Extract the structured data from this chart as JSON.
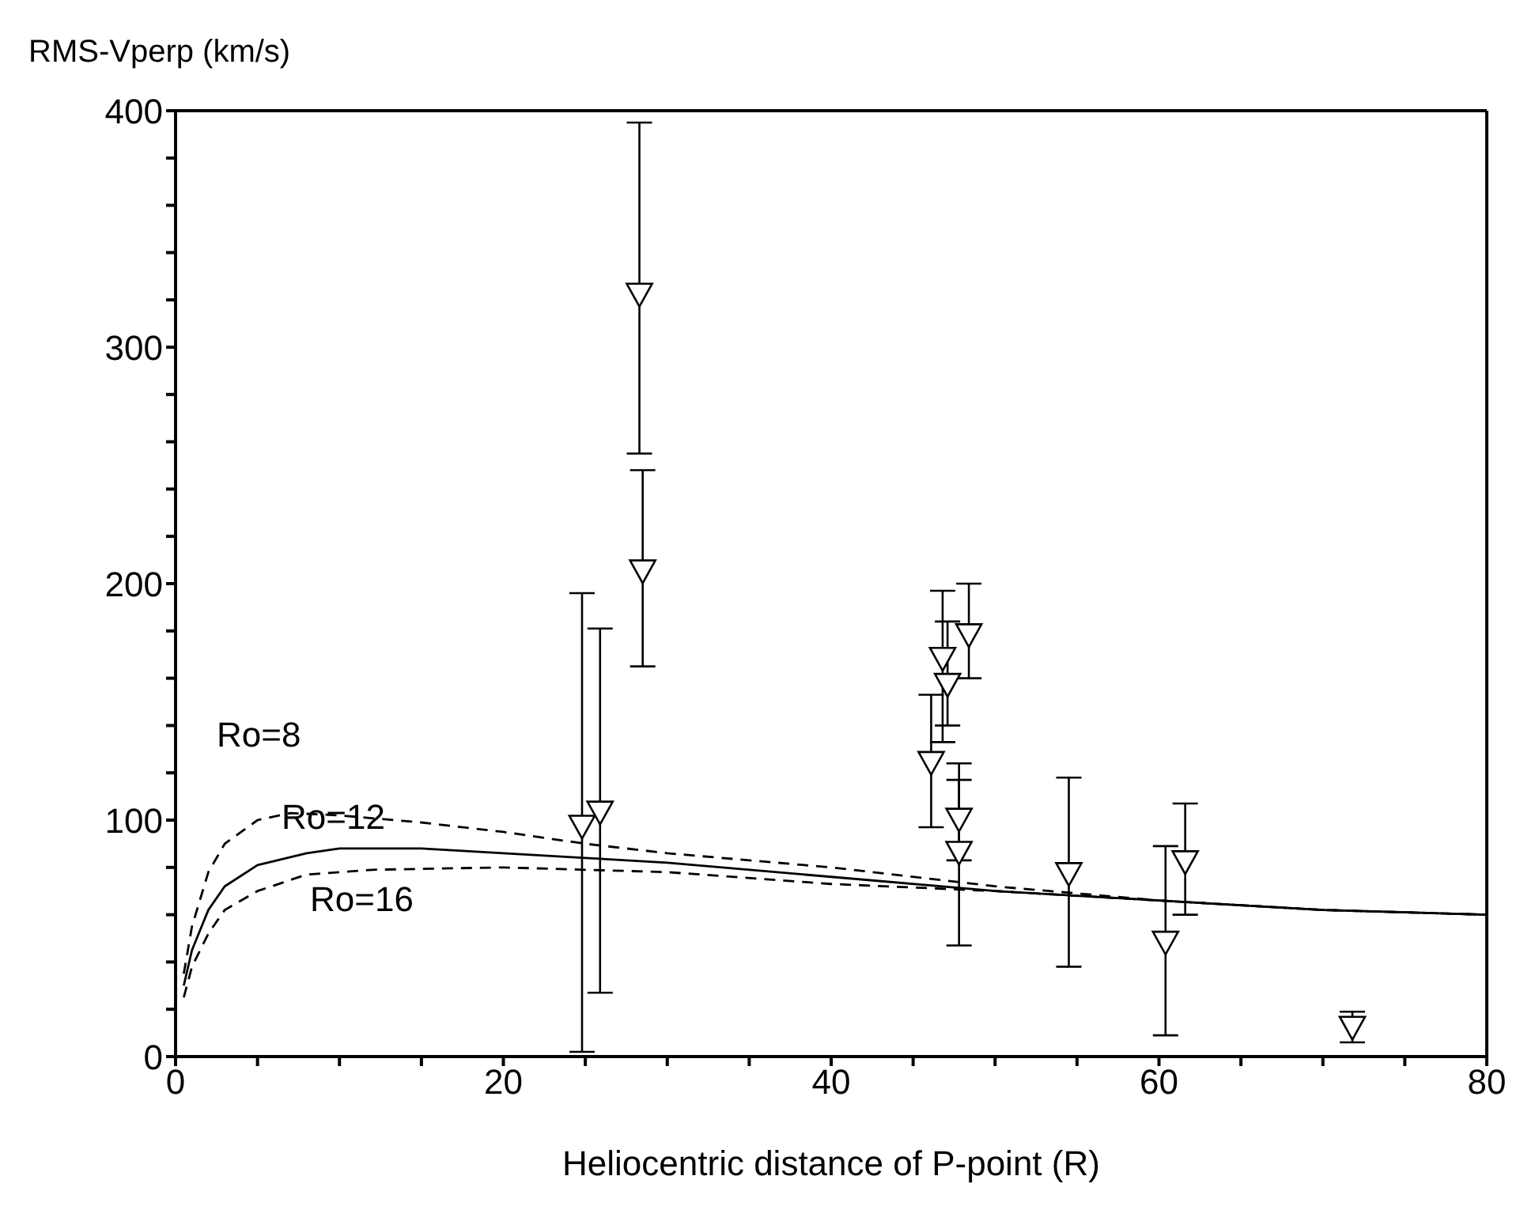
{
  "chart_data": {
    "type": "line",
    "xlabel": "Heliocentric distance of P-point (R)",
    "ylabel": "RMS-Vperp (km/s)",
    "xlim": [
      0,
      80
    ],
    "xticks": [
      0,
      {
        "value": 5,
        "label": null
      },
      {
        "value": 10,
        "label": null
      },
      {
        "value": 15,
        "label": null
      },
      20,
      {
        "value": 25,
        "label": null
      },
      {
        "value": 30,
        "label": null
      },
      {
        "value": 35,
        "label": null
      },
      40,
      {
        "value": 45,
        "label": null
      },
      {
        "value": 50,
        "label": null
      },
      {
        "value": 55,
        "label": null
      },
      60,
      {
        "value": 65,
        "label": null
      },
      {
        "value": 70,
        "label": null
      },
      {
        "value": 75,
        "label": null
      },
      80
    ],
    "ylim": [
      0,
      400
    ],
    "yticks": [
      0,
      {
        "value": 20,
        "label": null
      },
      {
        "value": 40,
        "label": null
      },
      {
        "value": 60,
        "label": null
      },
      {
        "value": 80,
        "label": null
      },
      100,
      {
        "value": 120,
        "label": null
      },
      {
        "value": 140,
        "label": null
      },
      {
        "value": 160,
        "label": null
      },
      {
        "value": 180,
        "label": null
      },
      200,
      {
        "value": 220,
        "label": null
      },
      {
        "value": 240,
        "label": null
      },
      {
        "value": 260,
        "label": null
      },
      {
        "value": 280,
        "label": null
      },
      300,
      {
        "value": 320,
        "label": null
      },
      {
        "value": 340,
        "label": null
      },
      {
        "value": 360,
        "label": null
      },
      {
        "value": 380,
        "label": null
      },
      400
    ],
    "grid": false,
    "series": [
      {
        "color": "#000000",
        "line_style": "dashed",
        "marker": "none",
        "x": [
          0.5,
          1,
          2,
          3,
          5,
          7,
          10,
          15,
          20,
          25,
          30,
          40,
          50,
          60,
          70,
          80
        ],
        "values": [
          35,
          55,
          78,
          90,
          100,
          103,
          102,
          99,
          95,
          90,
          86,
          80,
          72,
          66,
          62,
          60
        ]
      },
      {
        "color": "#000000",
        "line_style": "solid",
        "marker": "none",
        "x": [
          0.5,
          1,
          2,
          3,
          5,
          8,
          10,
          15,
          20,
          25,
          30,
          40,
          50,
          60,
          70,
          80
        ],
        "values": [
          30,
          45,
          62,
          72,
          81,
          86,
          88,
          88,
          86,
          84,
          82,
          76,
          70,
          66,
          62,
          60
        ]
      },
      {
        "color": "#000000",
        "line_style": "dashed",
        "marker": "none",
        "x": [
          0.5,
          1,
          2,
          3,
          5,
          8,
          12,
          20,
          25,
          30,
          40,
          50,
          60,
          70,
          80
        ],
        "values": [
          25,
          38,
          52,
          62,
          70,
          77,
          79,
          80,
          79,
          78,
          73,
          70,
          66,
          62,
          60
        ]
      },
      {
        "type": "scatter",
        "color": "#000000",
        "marker": "triangle",
        "x": [
          24.8,
          25.9,
          28.3,
          28.5,
          46.1,
          46.8,
          47.1,
          48.4,
          47.8,
          47.8,
          54.5,
          60.4,
          61.6,
          71.8
        ],
        "values": [
          97,
          103,
          322,
          205,
          124,
          168,
          157,
          178,
          100,
          86,
          77,
          48,
          82,
          12
        ],
        "errors": [
          [
            2,
            196
          ],
          [
            27,
            181
          ],
          [
            255,
            395
          ],
          [
            165,
            248
          ],
          [
            97,
            153
          ],
          [
            133,
            197
          ],
          [
            140,
            184
          ],
          [
            160,
            200
          ],
          [
            47,
            124
          ],
          [
            83,
            117
          ],
          [
            38,
            118
          ],
          [
            9,
            89
          ],
          [
            60,
            107
          ],
          [
            6,
            19
          ]
        ]
      }
    ],
    "annotations": [
      "Ro=8",
      "Ro=12",
      "Ro=16"
    ]
  }
}
